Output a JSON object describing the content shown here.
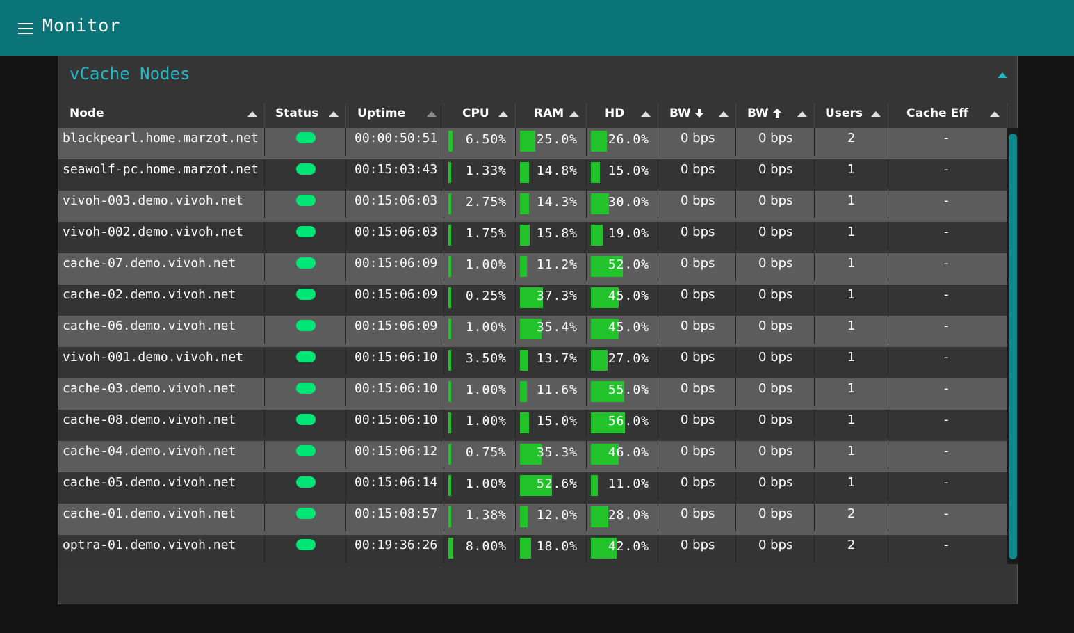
{
  "app": {
    "title": "Monitor",
    "menu_icon": "hamburger-menu-icon"
  },
  "panel": {
    "title": "vCache Nodes"
  },
  "columns": [
    {
      "key": "node",
      "label": "Node"
    },
    {
      "key": "status",
      "label": "Status"
    },
    {
      "key": "uptime",
      "label": "Uptime"
    },
    {
      "key": "cpu",
      "label": "CPU"
    },
    {
      "key": "ram",
      "label": "RAM"
    },
    {
      "key": "hd",
      "label": "HD"
    },
    {
      "key": "bw_down",
      "label": "BW",
      "icon": "arrow-down-icon"
    },
    {
      "key": "bw_up",
      "label": "BW",
      "icon": "arrow-up-icon"
    },
    {
      "key": "users",
      "label": "Users"
    },
    {
      "key": "cache_eff",
      "label": "Cache Eff"
    }
  ],
  "colors": {
    "header": "#0b7479",
    "accent": "#1fb8c4",
    "status_ok": "#00e676",
    "bar": "#22c22b"
  },
  "rows": [
    {
      "node": "blackpearl.home.marzot.net",
      "status": "online",
      "uptime": "00:00:50:51",
      "cpu": "6.50%",
      "cpu_v": 6.5,
      "ram": "25.0%",
      "ram_v": 25.0,
      "hd": "26.0%",
      "hd_v": 26.0,
      "bw_down": "0 bps",
      "bw_up": "0 bps",
      "users": "2",
      "cache_eff": "-"
    },
    {
      "node": "seawolf-pc.home.marzot.net",
      "status": "online",
      "uptime": "00:15:03:43",
      "cpu": "1.33%",
      "cpu_v": 1.33,
      "ram": "14.8%",
      "ram_v": 14.8,
      "hd": "15.0%",
      "hd_v": 15.0,
      "bw_down": "0 bps",
      "bw_up": "0 bps",
      "users": "1",
      "cache_eff": "-"
    },
    {
      "node": "vivoh-003.demo.vivoh.net",
      "status": "online",
      "uptime": "00:15:06:03",
      "cpu": "2.75%",
      "cpu_v": 2.75,
      "ram": "14.3%",
      "ram_v": 14.3,
      "hd": "30.0%",
      "hd_v": 30.0,
      "bw_down": "0 bps",
      "bw_up": "0 bps",
      "users": "1",
      "cache_eff": "-"
    },
    {
      "node": "vivoh-002.demo.vivoh.net",
      "status": "online",
      "uptime": "00:15:06:03",
      "cpu": "1.75%",
      "cpu_v": 1.75,
      "ram": "15.8%",
      "ram_v": 15.8,
      "hd": "19.0%",
      "hd_v": 19.0,
      "bw_down": "0 bps",
      "bw_up": "0 bps",
      "users": "1",
      "cache_eff": "-"
    },
    {
      "node": "cache-07.demo.vivoh.net",
      "status": "online",
      "uptime": "00:15:06:09",
      "cpu": "1.00%",
      "cpu_v": 1.0,
      "ram": "11.2%",
      "ram_v": 11.2,
      "hd": "52.0%",
      "hd_v": 52.0,
      "bw_down": "0 bps",
      "bw_up": "0 bps",
      "users": "1",
      "cache_eff": "-"
    },
    {
      "node": "cache-02.demo.vivoh.net",
      "status": "online",
      "uptime": "00:15:06:09",
      "cpu": "0.25%",
      "cpu_v": 0.25,
      "ram": "37.3%",
      "ram_v": 37.3,
      "hd": "45.0%",
      "hd_v": 45.0,
      "bw_down": "0 bps",
      "bw_up": "0 bps",
      "users": "1",
      "cache_eff": "-"
    },
    {
      "node": "cache-06.demo.vivoh.net",
      "status": "online",
      "uptime": "00:15:06:09",
      "cpu": "1.00%",
      "cpu_v": 1.0,
      "ram": "35.4%",
      "ram_v": 35.4,
      "hd": "45.0%",
      "hd_v": 45.0,
      "bw_down": "0 bps",
      "bw_up": "0 bps",
      "users": "1",
      "cache_eff": "-"
    },
    {
      "node": "vivoh-001.demo.vivoh.net",
      "status": "online",
      "uptime": "00:15:06:10",
      "cpu": "3.50%",
      "cpu_v": 3.5,
      "ram": "13.7%",
      "ram_v": 13.7,
      "hd": "27.0%",
      "hd_v": 27.0,
      "bw_down": "0 bps",
      "bw_up": "0 bps",
      "users": "1",
      "cache_eff": "-"
    },
    {
      "node": "cache-03.demo.vivoh.net",
      "status": "online",
      "uptime": "00:15:06:10",
      "cpu": "1.00%",
      "cpu_v": 1.0,
      "ram": "11.6%",
      "ram_v": 11.6,
      "hd": "55.0%",
      "hd_v": 55.0,
      "bw_down": "0 bps",
      "bw_up": "0 bps",
      "users": "1",
      "cache_eff": "-"
    },
    {
      "node": "cache-08.demo.vivoh.net",
      "status": "online",
      "uptime": "00:15:06:10",
      "cpu": "1.00%",
      "cpu_v": 1.0,
      "ram": "15.0%",
      "ram_v": 15.0,
      "hd": "56.0%",
      "hd_v": 56.0,
      "bw_down": "0 bps",
      "bw_up": "0 bps",
      "users": "1",
      "cache_eff": "-"
    },
    {
      "node": "cache-04.demo.vivoh.net",
      "status": "online",
      "uptime": "00:15:06:12",
      "cpu": "0.75%",
      "cpu_v": 0.75,
      "ram": "35.3%",
      "ram_v": 35.3,
      "hd": "46.0%",
      "hd_v": 46.0,
      "bw_down": "0 bps",
      "bw_up": "0 bps",
      "users": "1",
      "cache_eff": "-"
    },
    {
      "node": "cache-05.demo.vivoh.net",
      "status": "online",
      "uptime": "00:15:06:14",
      "cpu": "1.00%",
      "cpu_v": 1.0,
      "ram": "52.6%",
      "ram_v": 52.6,
      "hd": "11.0%",
      "hd_v": 11.0,
      "bw_down": "0 bps",
      "bw_up": "0 bps",
      "users": "1",
      "cache_eff": "-"
    },
    {
      "node": "cache-01.demo.vivoh.net",
      "status": "online",
      "uptime": "00:15:08:57",
      "cpu": "1.38%",
      "cpu_v": 1.38,
      "ram": "12.0%",
      "ram_v": 12.0,
      "hd": "28.0%",
      "hd_v": 28.0,
      "bw_down": "0 bps",
      "bw_up": "0 bps",
      "users": "2",
      "cache_eff": "-"
    },
    {
      "node": "optra-01.demo.vivoh.net",
      "status": "online",
      "uptime": "00:19:36:26",
      "cpu": "8.00%",
      "cpu_v": 8.0,
      "ram": "18.0%",
      "ram_v": 18.0,
      "hd": "42.0%",
      "hd_v": 42.0,
      "bw_down": "0 bps",
      "bw_up": "0 bps",
      "users": "2",
      "cache_eff": "-"
    }
  ]
}
